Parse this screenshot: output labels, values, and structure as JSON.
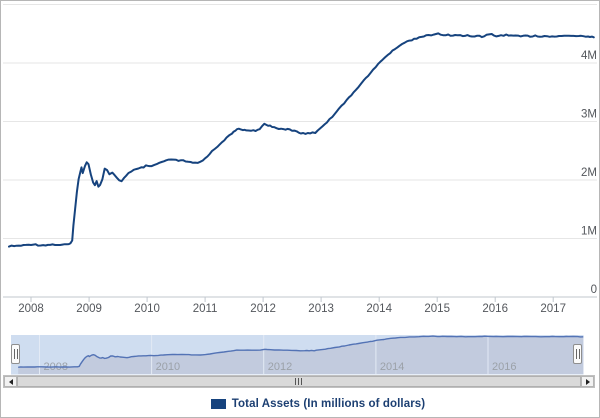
{
  "chart_data": {
    "type": "line",
    "title": "",
    "xlabel": "",
    "ylabel": "",
    "ylim": [
      0,
      5000000
    ],
    "grid": "horizontal",
    "x_ticks": [
      2008,
      2009,
      2010,
      2011,
      2012,
      2013,
      2014,
      2015,
      2016,
      2017
    ],
    "y_ticks": [
      {
        "value": 0,
        "label": "0"
      },
      {
        "value": 1000000,
        "label": "1M"
      },
      {
        "value": 2000000,
        "label": "2M"
      },
      {
        "value": 3000000,
        "label": "3M"
      },
      {
        "value": 4000000,
        "label": "4M"
      }
    ],
    "navigator_x_ticks": [
      2008,
      2010,
      2012,
      2014,
      2016
    ],
    "legend_position": "bottom-center",
    "series": [
      {
        "name": "Total Assets (In millions of dollars)",
        "color": "#16437e",
        "points": [
          [
            2007.62,
            870000
          ],
          [
            2007.71,
            872000
          ],
          [
            2007.79,
            878000
          ],
          [
            2007.87,
            882000
          ],
          [
            2007.96,
            894000
          ],
          [
            2008.04,
            902000
          ],
          [
            2008.12,
            888000
          ],
          [
            2008.21,
            886000
          ],
          [
            2008.29,
            890000
          ],
          [
            2008.37,
            896000
          ],
          [
            2008.46,
            890000
          ],
          [
            2008.54,
            894000
          ],
          [
            2008.62,
            898000
          ],
          [
            2008.68,
            910000
          ],
          [
            2008.71,
            960000
          ],
          [
            2008.73,
            1220000
          ],
          [
            2008.76,
            1510000
          ],
          [
            2008.79,
            1800000
          ],
          [
            2008.82,
            2010000
          ],
          [
            2008.85,
            2140000
          ],
          [
            2008.87,
            2210000
          ],
          [
            2008.89,
            2120000
          ],
          [
            2008.93,
            2250000
          ],
          [
            2008.96,
            2310000
          ],
          [
            2008.99,
            2270000
          ],
          [
            2009.03,
            2100000
          ],
          [
            2009.07,
            1960000
          ],
          [
            2009.1,
            1920000
          ],
          [
            2009.13,
            1980000
          ],
          [
            2009.16,
            1880000
          ],
          [
            2009.19,
            1920000
          ],
          [
            2009.23,
            2020000
          ],
          [
            2009.27,
            2190000
          ],
          [
            2009.31,
            2170000
          ],
          [
            2009.35,
            2090000
          ],
          [
            2009.4,
            2120000
          ],
          [
            2009.44,
            2080000
          ],
          [
            2009.48,
            2030000
          ],
          [
            2009.52,
            2000000
          ],
          [
            2009.56,
            1980000
          ],
          [
            2009.6,
            2030000
          ],
          [
            2009.64,
            2080000
          ],
          [
            2009.68,
            2120000
          ],
          [
            2009.73,
            2140000
          ],
          [
            2009.77,
            2170000
          ],
          [
            2009.81,
            2180000
          ],
          [
            2009.85,
            2190000
          ],
          [
            2009.9,
            2210000
          ],
          [
            2009.94,
            2220000
          ],
          [
            2009.98,
            2240000
          ],
          [
            2010.04,
            2230000
          ],
          [
            2010.12,
            2250000
          ],
          [
            2010.21,
            2290000
          ],
          [
            2010.29,
            2320000
          ],
          [
            2010.37,
            2340000
          ],
          [
            2010.46,
            2350000
          ],
          [
            2010.54,
            2330000
          ],
          [
            2010.62,
            2330000
          ],
          [
            2010.71,
            2310000
          ],
          [
            2010.79,
            2290000
          ],
          [
            2010.87,
            2290000
          ],
          [
            2010.96,
            2330000
          ],
          [
            2011.04,
            2410000
          ],
          [
            2011.12,
            2490000
          ],
          [
            2011.21,
            2570000
          ],
          [
            2011.29,
            2650000
          ],
          [
            2011.37,
            2720000
          ],
          [
            2011.46,
            2790000
          ],
          [
            2011.52,
            2850000
          ],
          [
            2011.58,
            2870000
          ],
          [
            2011.65,
            2860000
          ],
          [
            2011.71,
            2850000
          ],
          [
            2011.79,
            2850000
          ],
          [
            2011.87,
            2840000
          ],
          [
            2011.94,
            2860000
          ],
          [
            2011.98,
            2920000
          ],
          [
            2012.02,
            2960000
          ],
          [
            2012.06,
            2940000
          ],
          [
            2012.12,
            2930000
          ],
          [
            2012.19,
            2900000
          ],
          [
            2012.27,
            2880000
          ],
          [
            2012.35,
            2860000
          ],
          [
            2012.42,
            2870000
          ],
          [
            2012.5,
            2850000
          ],
          [
            2012.58,
            2830000
          ],
          [
            2012.65,
            2800000
          ],
          [
            2012.73,
            2790000
          ],
          [
            2012.77,
            2810000
          ],
          [
            2012.81,
            2790000
          ],
          [
            2012.85,
            2820000
          ],
          [
            2012.9,
            2810000
          ],
          [
            2012.94,
            2840000
          ],
          [
            2012.98,
            2880000
          ],
          [
            2013.02,
            2920000
          ],
          [
            2013.1,
            2990000
          ],
          [
            2013.19,
            3080000
          ],
          [
            2013.27,
            3180000
          ],
          [
            2013.35,
            3270000
          ],
          [
            2013.44,
            3360000
          ],
          [
            2013.52,
            3450000
          ],
          [
            2013.6,
            3550000
          ],
          [
            2013.69,
            3650000
          ],
          [
            2013.77,
            3740000
          ],
          [
            2013.85,
            3830000
          ],
          [
            2013.94,
            3930000
          ],
          [
            2014.02,
            4020000
          ],
          [
            2014.1,
            4100000
          ],
          [
            2014.19,
            4170000
          ],
          [
            2014.27,
            4240000
          ],
          [
            2014.35,
            4300000
          ],
          [
            2014.44,
            4350000
          ],
          [
            2014.52,
            4380000
          ],
          [
            2014.6,
            4410000
          ],
          [
            2014.69,
            4440000
          ],
          [
            2014.77,
            4460000
          ],
          [
            2014.85,
            4470000
          ],
          [
            2014.94,
            4490000
          ],
          [
            2015.02,
            4500000
          ],
          [
            2015.1,
            4470000
          ],
          [
            2015.19,
            4480000
          ],
          [
            2015.27,
            4470000
          ],
          [
            2015.35,
            4480000
          ],
          [
            2015.44,
            4460000
          ],
          [
            2015.52,
            4470000
          ],
          [
            2015.6,
            4450000
          ],
          [
            2015.69,
            4470000
          ],
          [
            2015.77,
            4450000
          ],
          [
            2015.85,
            4480000
          ],
          [
            2015.94,
            4490000
          ],
          [
            2016.02,
            4460000
          ],
          [
            2016.1,
            4470000
          ],
          [
            2016.19,
            4480000
          ],
          [
            2016.27,
            4470000
          ],
          [
            2016.35,
            4470000
          ],
          [
            2016.44,
            4460000
          ],
          [
            2016.52,
            4470000
          ],
          [
            2016.6,
            4450000
          ],
          [
            2016.69,
            4470000
          ],
          [
            2016.77,
            4450000
          ],
          [
            2016.85,
            4460000
          ],
          [
            2016.94,
            4450000
          ],
          [
            2017.02,
            4450000
          ],
          [
            2017.1,
            4460000
          ],
          [
            2017.19,
            4470000
          ],
          [
            2017.27,
            4460000
          ],
          [
            2017.35,
            4460000
          ],
          [
            2017.44,
            4470000
          ],
          [
            2017.52,
            4460000
          ],
          [
            2017.6,
            4450000
          ],
          [
            2017.7,
            4440000
          ]
        ]
      }
    ]
  },
  "legend": {
    "label": "Total Assets (In millions of dollars)",
    "swatch_color": "#16437e"
  },
  "colors": {
    "series": "#16437e",
    "gridline": "#e6e6e6",
    "axis_line": "#c0c7ce",
    "axis_label": "#54575c",
    "nav_mask": "#cfddf0",
    "nav_area": "#bfc8da",
    "nav_line": "#5373b5",
    "nav_grid": "#e3eaf5",
    "nav_label": "#9ba1a8"
  }
}
